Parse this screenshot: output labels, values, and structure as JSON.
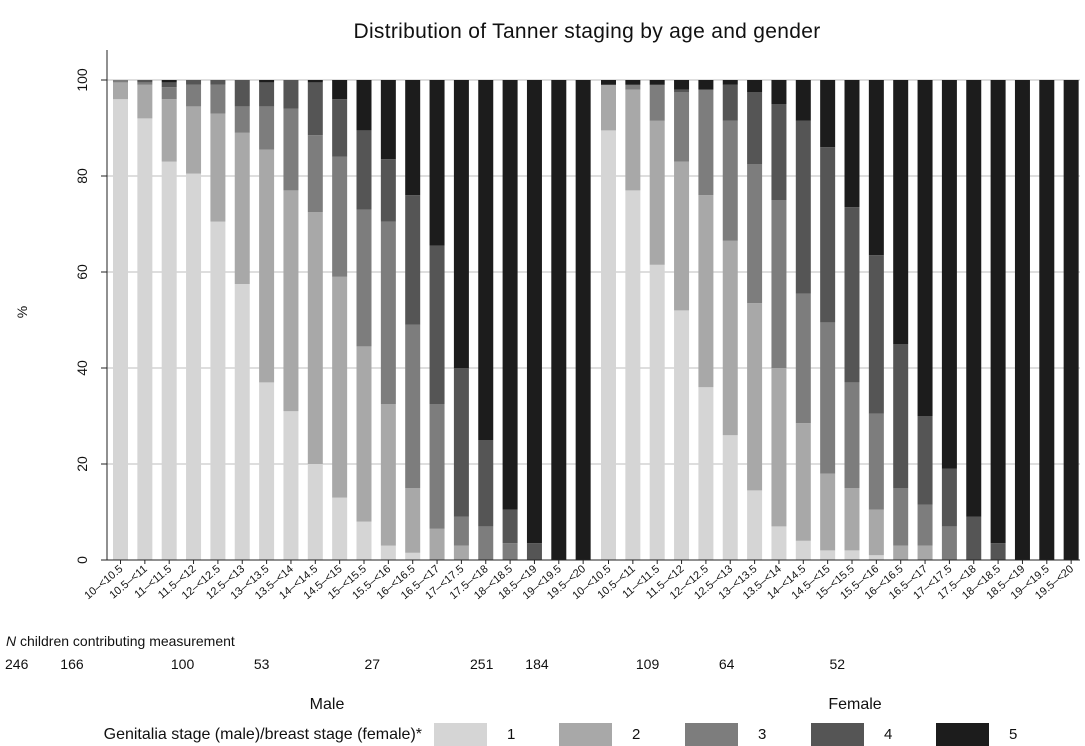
{
  "chart_data": {
    "type": "bar",
    "stacked": true,
    "title": "Distribution of Tanner staging by age and gender",
    "ylabel": "%",
    "ylim": [
      0,
      100
    ],
    "yticks": [
      0,
      20,
      40,
      60,
      80,
      100
    ],
    "grid": true,
    "categories": [
      "10–<10.5",
      "10.5–<11",
      "11–<11.5",
      "11.5–<12",
      "12–<12.5",
      "12.5–<13",
      "13–<13.5",
      "13.5–<14",
      "14–<14.5",
      "14.5–<15",
      "15–<15.5",
      "15.5–<16",
      "16–<16.5",
      "16.5–<17",
      "17–<17.5",
      "17.5–<18",
      "18–<18.5",
      "18.5–<19",
      "19–<19.5",
      "19.5–<20"
    ],
    "colors": [
      "#d5d5d5",
      "#a8a8a8",
      "#7d7d7d",
      "#555555",
      "#1c1c1c"
    ],
    "groups": [
      {
        "name": "Male",
        "stages": [
          [
            96,
            92,
            83,
            80.5,
            70.5,
            57.5,
            37,
            31,
            20,
            13,
            8,
            3,
            1.5,
            0,
            0,
            0,
            0,
            0,
            0,
            0
          ],
          [
            3.5,
            7,
            13,
            14,
            22.5,
            31.5,
            48.5,
            46,
            52.5,
            46,
            36.5,
            29.5,
            13.5,
            6.5,
            3,
            0,
            0,
            0,
            0,
            0
          ],
          [
            0.5,
            0.5,
            2.5,
            4.5,
            6,
            5.5,
            9,
            17,
            16,
            25,
            28.5,
            38,
            34,
            26,
            6,
            7,
            3.5,
            0,
            0,
            0
          ],
          [
            0,
            0.5,
            1,
            1,
            1,
            5.5,
            5,
            6,
            11,
            12,
            16.5,
            13,
            27,
            33,
            31,
            18,
            7,
            3.5,
            0,
            0
          ],
          [
            0,
            0,
            0.5,
            0,
            0,
            0,
            0.5,
            0,
            0.5,
            4,
            10.5,
            16.5,
            24,
            34.5,
            60,
            75,
            89.5,
            96.5,
            100,
            100
          ]
        ],
        "n_counts": [
          {
            "index": 0,
            "value": "246"
          },
          {
            "index": 2,
            "value": "166"
          },
          {
            "index": 6,
            "value": "100"
          },
          {
            "index": 9,
            "value": "53"
          },
          {
            "index": 13,
            "value": "27"
          }
        ]
      },
      {
        "name": "Female",
        "stages": [
          [
            89.5,
            77,
            61.5,
            52,
            36,
            26,
            14.5,
            7,
            4,
            2,
            2,
            1,
            0,
            0,
            0,
            0,
            0,
            0,
            0,
            0
          ],
          [
            9.5,
            21,
            30,
            31,
            40,
            40.5,
            39,
            33,
            24.5,
            16,
            13,
            9.5,
            3,
            3,
            0,
            0,
            0,
            0,
            0,
            0
          ],
          [
            0,
            1,
            7.5,
            14.5,
            22,
            25,
            29,
            35,
            27,
            31.5,
            22,
            20,
            12,
            8.5,
            7,
            0,
            0,
            0,
            0,
            0
          ],
          [
            0,
            0,
            0,
            0.5,
            0,
            7.5,
            15,
            20,
            36,
            36.5,
            36.5,
            33,
            30,
            18.5,
            12,
            9,
            3.5,
            0,
            0,
            0
          ],
          [
            1,
            1,
            1,
            2,
            2,
            1,
            2.5,
            5,
            8.5,
            14,
            26.5,
            36.5,
            55,
            70,
            81,
            91,
            96.5,
            100,
            100,
            100
          ]
        ],
        "n_counts": [
          {
            "index": 0,
            "value": "251"
          },
          {
            "index": 2,
            "value": "184"
          },
          {
            "index": 6,
            "value": "109"
          },
          {
            "index": 9,
            "value": "64"
          },
          {
            "index": 13,
            "value": "52"
          }
        ]
      }
    ],
    "n_label_italic": "N",
    "n_label_rest": " children contributing measurement",
    "legend": {
      "placement": "bottom",
      "title": "Genitalia stage (male)/breast stage (female)*",
      "entries": [
        "1",
        "2",
        "3",
        "4",
        "5"
      ]
    }
  }
}
